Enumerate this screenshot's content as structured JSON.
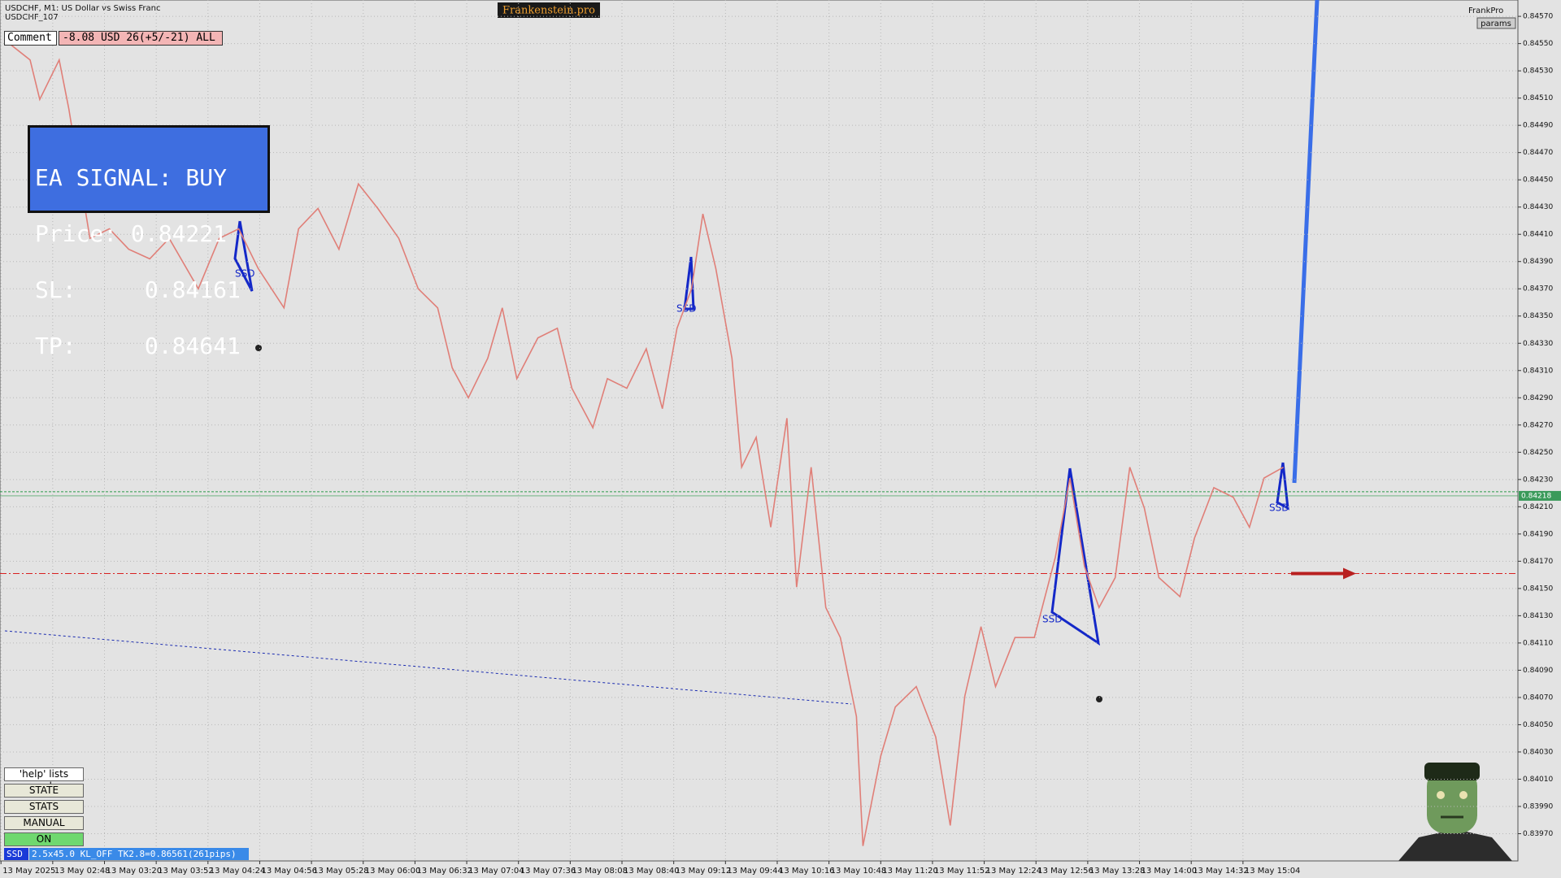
{
  "header": {
    "symbol": "USDCHF, M1:  US Dollar vs Swiss Franc",
    "account": "USDCHF_107",
    "brand": "Frankenstein.pro",
    "profile": "FrankPro",
    "params": "params"
  },
  "comment": {
    "label": "Comment",
    "text": "-8.08 USD 26(+5/-21) ALL"
  },
  "signal": {
    "title": "EA SIGNAL: BUY",
    "price": "Price: 0.84221",
    "sl": "SL:     0.84161",
    "tp": "TP:     0.84641"
  },
  "buttons": [
    "'help' lists cmds",
    "STATE",
    "STATS",
    "MANUAL",
    "ON"
  ],
  "status": {
    "tag": "SSD",
    "text": "2.5x45.0 KL_OFF TK2.8=0.86561(261pips)"
  },
  "annotations": [
    "SSD",
    "SSD",
    "SSD",
    "SSD"
  ],
  "chart_data": {
    "type": "line",
    "color": "#e07f78",
    "grid": true,
    "x": [
      138,
      154,
      160,
      172,
      178,
      191,
      203,
      215,
      228,
      240,
      258,
      271,
      283,
      295,
      311,
      320,
      332,
      345,
      357,
      369,
      382,
      394,
      406,
      415,
      425,
      437,
      446,
      455,
      468,
      480,
      489,
      502,
      511,
      523,
      535,
      545,
      554,
      563,
      570,
      578,
      588,
      594,
      603,
      612,
      622,
      628,
      637,
      646,
      655,
      665,
      669,
      680,
      689,
      702,
      714,
      723,
      732,
      742,
      751,
      763,
      775,
      788,
      797,
      806,
      815,
      825,
      834,
      843,
      852,
      865,
      874,
      886,
      898,
      908,
      917,
      929
    ],
    "values": [
      0.84553,
      0.84538,
      0.84509,
      0.84538,
      0.84502,
      0.84407,
      0.84414,
      0.84399,
      0.84392,
      0.84407,
      0.8437,
      0.84407,
      0.84414,
      0.84385,
      0.84356,
      0.84414,
      0.84429,
      0.84399,
      0.84447,
      0.84429,
      0.84407,
      0.8437,
      0.84356,
      0.84312,
      0.8429,
      0.84319,
      0.84356,
      0.84304,
      0.84334,
      0.84341,
      0.84297,
      0.84268,
      0.84304,
      0.84297,
      0.84326,
      0.84282,
      0.84341,
      0.8437,
      0.84425,
      0.84385,
      0.84319,
      0.84239,
      0.84261,
      0.84195,
      0.84275,
      0.84151,
      0.84239,
      0.84136,
      0.84114,
      0.84056,
      0.83961,
      0.84027,
      0.84063,
      0.84078,
      0.84041,
      0.83976,
      0.84071,
      0.84122,
      0.84078,
      0.84114,
      0.84114,
      0.84173,
      0.84231,
      0.84166,
      0.84136,
      0.84158,
      0.84239,
      0.84209,
      0.84158,
      0.84144,
      0.84187,
      0.84224,
      0.84217,
      0.84195,
      0.84231,
      0.84239
    ],
    "xlim": [
      135.4,
      1074
    ],
    "ylim": [
      0.8395,
      0.84582
    ],
    "xticks": [
      {
        "value": 136,
        "label": "13 May 2025"
      },
      {
        "value": 168,
        "label": "13 May 02:48"
      },
      {
        "value": 200,
        "label": "13 May 03:20"
      },
      {
        "value": 232,
        "label": "13 May 03:52"
      },
      {
        "value": 264,
        "label": "13 May 04:24"
      },
      {
        "value": 296,
        "label": "13 May 04:56"
      },
      {
        "value": 328,
        "label": "13 May 05:28"
      },
      {
        "value": 360,
        "label": "13 May 06:00"
      },
      {
        "value": 392,
        "label": "13 May 06:32"
      },
      {
        "value": 424,
        "label": "13 May 07:04"
      },
      {
        "value": 456,
        "label": "13 May 07:36"
      },
      {
        "value": 488,
        "label": "13 May 08:08"
      },
      {
        "value": 520,
        "label": "13 May 08:40"
      },
      {
        "value": 552,
        "label": "13 May 09:12"
      },
      {
        "value": 584,
        "label": "13 May 09:44"
      },
      {
        "value": 616,
        "label": "13 May 10:16"
      },
      {
        "value": 648,
        "label": "13 May 10:48"
      },
      {
        "value": 680,
        "label": "13 May 11:20"
      },
      {
        "value": 712,
        "label": "13 May 11:52"
      },
      {
        "value": 744,
        "label": "13 May 12:24"
      },
      {
        "value": 776,
        "label": "13 May 12:56"
      },
      {
        "value": 808,
        "label": "13 May 13:28"
      },
      {
        "value": 840,
        "label": "13 May 14:00"
      },
      {
        "value": 872,
        "label": "13 May 14:32"
      },
      {
        "value": 904,
        "label": "13 May 15:04"
      }
    ],
    "yticks": [
      {
        "value": 0.8457,
        "label": "0.84570"
      },
      {
        "value": 0.8455,
        "label": "0.84550"
      },
      {
        "value": 0.8453,
        "label": "0.84530"
      },
      {
        "value": 0.8451,
        "label": "0.84510"
      },
      {
        "value": 0.8449,
        "label": "0.84490"
      },
      {
        "value": 0.8447,
        "label": "0.84470"
      },
      {
        "value": 0.8445,
        "label": "0.84450"
      },
      {
        "value": 0.8443,
        "label": "0.84430"
      },
      {
        "value": 0.8441,
        "label": "0.84410"
      },
      {
        "value": 0.8439,
        "label": "0.84390"
      },
      {
        "value": 0.8437,
        "label": "0.84370"
      },
      {
        "value": 0.8435,
        "label": "0.84350"
      },
      {
        "value": 0.8433,
        "label": "0.84330"
      },
      {
        "value": 0.8431,
        "label": "0.84310"
      },
      {
        "value": 0.8429,
        "label": "0.84290"
      },
      {
        "value": 0.8427,
        "label": "0.84270"
      },
      {
        "value": 0.8425,
        "label": "0.84250"
      },
      {
        "value": 0.8423,
        "label": "0.84230"
      },
      {
        "value": 0.8421,
        "label": "0.84210"
      },
      {
        "value": 0.8419,
        "label": "0.84190"
      },
      {
        "value": 0.8417,
        "label": "0.84170"
      },
      {
        "value": 0.8415,
        "label": "0.84150"
      },
      {
        "value": 0.8413,
        "label": "0.84130"
      },
      {
        "value": 0.8411,
        "label": "0.84110"
      },
      {
        "value": 0.8409,
        "label": "0.84090"
      },
      {
        "value": 0.8407,
        "label": "0.84070"
      },
      {
        "value": 0.8405,
        "label": "0.84050"
      },
      {
        "value": 0.8403,
        "label": "0.84030"
      },
      {
        "value": 0.8401,
        "label": "0.84010"
      },
      {
        "value": 0.8399,
        "label": "0.83990"
      },
      {
        "value": 0.8397,
        "label": "0.83970"
      }
    ],
    "current_price": {
      "value": 0.84218,
      "label": "0.84218"
    },
    "entry_line": 0.84221,
    "stop_line": 0.84161
  }
}
